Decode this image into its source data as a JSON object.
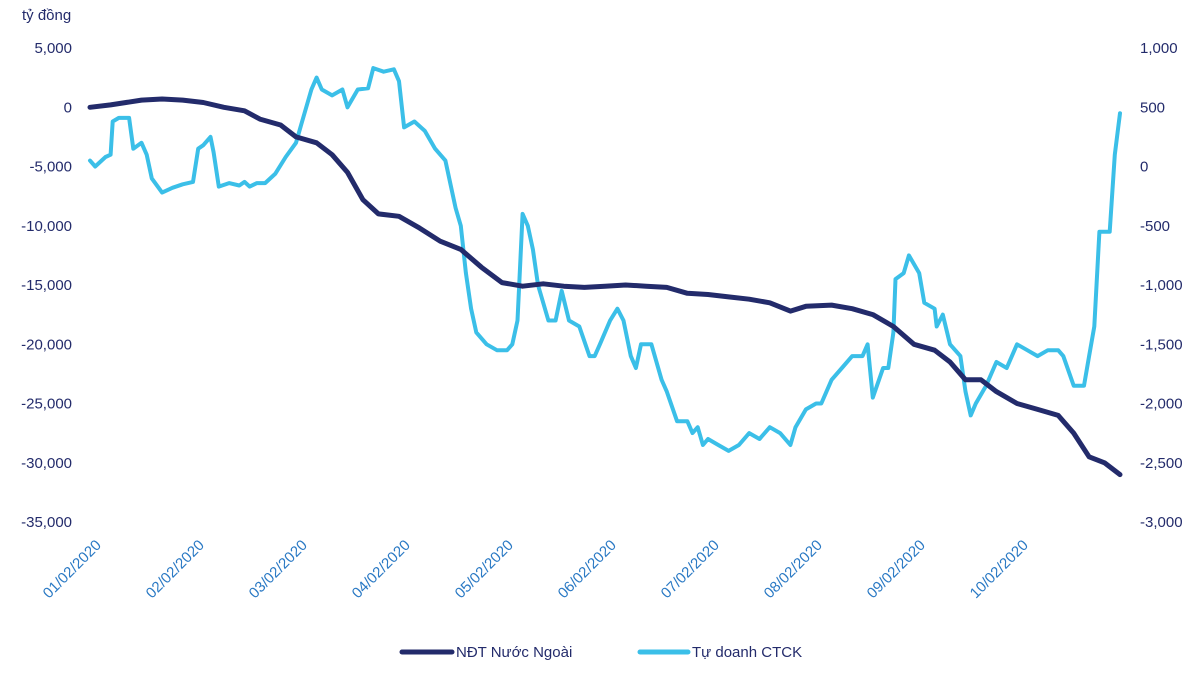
{
  "chart_data": {
    "type": "line",
    "unit_label": "tỷ đồng",
    "x_ticks": [
      "01/02/2020",
      "02/02/2020",
      "03/02/2020",
      "04/02/2020",
      "05/02/2020",
      "06/02/2020",
      "07/02/2020",
      "08/02/2020",
      "09/02/2020",
      "10/02/2020"
    ],
    "y_left": {
      "range": [
        -35000,
        5000
      ],
      "ticks": [
        5000,
        0,
        -5000,
        -10000,
        -15000,
        -20000,
        -25000,
        -30000,
        -35000
      ],
      "tick_labels": [
        "5,000",
        "0",
        "-5,000",
        "-10,000",
        "-15,000",
        "-20,000",
        "-25,000",
        "-30,000",
        "-35,000"
      ]
    },
    "y_right": {
      "range": [
        -3000,
        1000
      ],
      "ticks": [
        1000,
        500,
        0,
        -500,
        -1000,
        -1500,
        -2000,
        -2500,
        -3000
      ],
      "tick_labels": [
        "1,000",
        "500",
        "0",
        "-500",
        "-1,000",
        "-1,500",
        "-2,000",
        "-2,500",
        "-3,000"
      ]
    },
    "x_domain": [
      0,
      10
    ],
    "series": [
      {
        "name": "NĐT Nước Ngoài",
        "axis": "left",
        "color": "#232b6b",
        "points": [
          [
            0.0,
            0
          ],
          [
            0.2,
            200
          ],
          [
            0.35,
            400
          ],
          [
            0.5,
            600
          ],
          [
            0.7,
            700
          ],
          [
            0.9,
            600
          ],
          [
            1.1,
            400
          ],
          [
            1.3,
            0
          ],
          [
            1.5,
            -300
          ],
          [
            1.65,
            -1000
          ],
          [
            1.85,
            -1500
          ],
          [
            2.0,
            -2500
          ],
          [
            2.2,
            -3000
          ],
          [
            2.35,
            -4000
          ],
          [
            2.5,
            -5500
          ],
          [
            2.65,
            -7800
          ],
          [
            2.8,
            -9000
          ],
          [
            3.0,
            -9200
          ],
          [
            3.2,
            -10200
          ],
          [
            3.4,
            -11300
          ],
          [
            3.6,
            -12000
          ],
          [
            3.8,
            -13500
          ],
          [
            4.0,
            -14800
          ],
          [
            4.2,
            -15100
          ],
          [
            4.4,
            -14900
          ],
          [
            4.6,
            -15100
          ],
          [
            4.8,
            -15200
          ],
          [
            5.0,
            -15100
          ],
          [
            5.2,
            -15000
          ],
          [
            5.4,
            -15100
          ],
          [
            5.6,
            -15200
          ],
          [
            5.8,
            -15700
          ],
          [
            6.0,
            -15800
          ],
          [
            6.2,
            -16000
          ],
          [
            6.4,
            -16200
          ],
          [
            6.6,
            -16500
          ],
          [
            6.8,
            -17200
          ],
          [
            6.95,
            -16800
          ],
          [
            7.2,
            -16700
          ],
          [
            7.4,
            -17000
          ],
          [
            7.6,
            -17500
          ],
          [
            7.8,
            -18500
          ],
          [
            8.0,
            -20000
          ],
          [
            8.2,
            -20500
          ],
          [
            8.35,
            -21500
          ],
          [
            8.5,
            -23000
          ],
          [
            8.65,
            -23000
          ],
          [
            8.8,
            -24000
          ],
          [
            9.0,
            -25000
          ],
          [
            9.2,
            -25500
          ],
          [
            9.4,
            -26000
          ],
          [
            9.55,
            -27500
          ],
          [
            9.7,
            -29500
          ],
          [
            9.85,
            -30000
          ],
          [
            10.0,
            -31000
          ]
        ]
      },
      {
        "name": "Tự doanh CTCK",
        "axis": "right",
        "color": "#3bbfe8",
        "points": [
          [
            0.0,
            50
          ],
          [
            0.05,
            0
          ],
          [
            0.15,
            80
          ],
          [
            0.2,
            100
          ],
          [
            0.22,
            380
          ],
          [
            0.28,
            410
          ],
          [
            0.38,
            410
          ],
          [
            0.42,
            150
          ],
          [
            0.5,
            200
          ],
          [
            0.55,
            100
          ],
          [
            0.6,
            -100
          ],
          [
            0.7,
            -220
          ],
          [
            0.8,
            -180
          ],
          [
            0.9,
            -150
          ],
          [
            1.0,
            -130
          ],
          [
            1.05,
            150
          ],
          [
            1.1,
            180
          ],
          [
            1.17,
            250
          ],
          [
            1.2,
            120
          ],
          [
            1.25,
            -170
          ],
          [
            1.35,
            -140
          ],
          [
            1.45,
            -160
          ],
          [
            1.5,
            -130
          ],
          [
            1.55,
            -170
          ],
          [
            1.62,
            -140
          ],
          [
            1.7,
            -140
          ],
          [
            1.8,
            -60
          ],
          [
            1.9,
            80
          ],
          [
            2.0,
            200
          ],
          [
            2.05,
            350
          ],
          [
            2.15,
            650
          ],
          [
            2.2,
            750
          ],
          [
            2.25,
            650
          ],
          [
            2.35,
            600
          ],
          [
            2.45,
            650
          ],
          [
            2.5,
            500
          ],
          [
            2.6,
            650
          ],
          [
            2.7,
            660
          ],
          [
            2.75,
            830
          ],
          [
            2.85,
            800
          ],
          [
            2.95,
            820
          ],
          [
            3.0,
            720
          ],
          [
            3.05,
            330
          ],
          [
            3.15,
            380
          ],
          [
            3.25,
            300
          ],
          [
            3.35,
            150
          ],
          [
            3.45,
            50
          ],
          [
            3.5,
            -150
          ],
          [
            3.55,
            -350
          ],
          [
            3.6,
            -500
          ],
          [
            3.65,
            -900
          ],
          [
            3.7,
            -1200
          ],
          [
            3.75,
            -1400
          ],
          [
            3.85,
            -1500
          ],
          [
            3.95,
            -1550
          ],
          [
            4.05,
            -1550
          ],
          [
            4.1,
            -1500
          ],
          [
            4.15,
            -1300
          ],
          [
            4.2,
            -400
          ],
          [
            4.25,
            -500
          ],
          [
            4.3,
            -700
          ],
          [
            4.35,
            -1000
          ],
          [
            4.45,
            -1300
          ],
          [
            4.52,
            -1300
          ],
          [
            4.58,
            -1050
          ],
          [
            4.65,
            -1300
          ],
          [
            4.75,
            -1350
          ],
          [
            4.85,
            -1600
          ],
          [
            4.9,
            -1600
          ],
          [
            4.95,
            -1500
          ],
          [
            5.05,
            -1300
          ],
          [
            5.12,
            -1200
          ],
          [
            5.18,
            -1300
          ],
          [
            5.25,
            -1600
          ],
          [
            5.3,
            -1700
          ],
          [
            5.35,
            -1500
          ],
          [
            5.45,
            -1500
          ],
          [
            5.55,
            -1800
          ],
          [
            5.6,
            -1900
          ],
          [
            5.7,
            -2150
          ],
          [
            5.8,
            -2150
          ],
          [
            5.85,
            -2250
          ],
          [
            5.9,
            -2200
          ],
          [
            5.95,
            -2350
          ],
          [
            6.0,
            -2300
          ],
          [
            6.1,
            -2350
          ],
          [
            6.2,
            -2400
          ],
          [
            6.3,
            -2350
          ],
          [
            6.4,
            -2250
          ],
          [
            6.5,
            -2300
          ],
          [
            6.6,
            -2200
          ],
          [
            6.7,
            -2250
          ],
          [
            6.8,
            -2350
          ],
          [
            6.85,
            -2200
          ],
          [
            6.95,
            -2050
          ],
          [
            7.05,
            -2000
          ],
          [
            7.1,
            -2000
          ],
          [
            7.2,
            -1800
          ],
          [
            7.3,
            -1700
          ],
          [
            7.4,
            -1600
          ],
          [
            7.5,
            -1600
          ],
          [
            7.55,
            -1500
          ],
          [
            7.6,
            -1950
          ],
          [
            7.7,
            -1700
          ],
          [
            7.75,
            -1700
          ],
          [
            7.8,
            -1400
          ],
          [
            7.82,
            -950
          ],
          [
            7.9,
            -900
          ],
          [
            7.95,
            -750
          ],
          [
            8.05,
            -900
          ],
          [
            8.1,
            -1150
          ],
          [
            8.2,
            -1200
          ],
          [
            8.22,
            -1350
          ],
          [
            8.28,
            -1250
          ],
          [
            8.35,
            -1500
          ],
          [
            8.45,
            -1600
          ],
          [
            8.5,
            -1900
          ],
          [
            8.55,
            -2100
          ],
          [
            8.6,
            -2000
          ],
          [
            8.7,
            -1850
          ],
          [
            8.8,
            -1650
          ],
          [
            8.9,
            -1700
          ],
          [
            9.0,
            -1500
          ],
          [
            9.1,
            -1550
          ],
          [
            9.2,
            -1600
          ],
          [
            9.3,
            -1550
          ],
          [
            9.4,
            -1550
          ],
          [
            9.45,
            -1600
          ],
          [
            9.55,
            -1850
          ],
          [
            9.65,
            -1850
          ],
          [
            9.7,
            -1600
          ],
          [
            9.75,
            -1350
          ],
          [
            9.8,
            -550
          ],
          [
            9.9,
            -550
          ],
          [
            9.95,
            100
          ],
          [
            10.0,
            450
          ]
        ]
      }
    ],
    "legend_position": "bottom-center"
  }
}
